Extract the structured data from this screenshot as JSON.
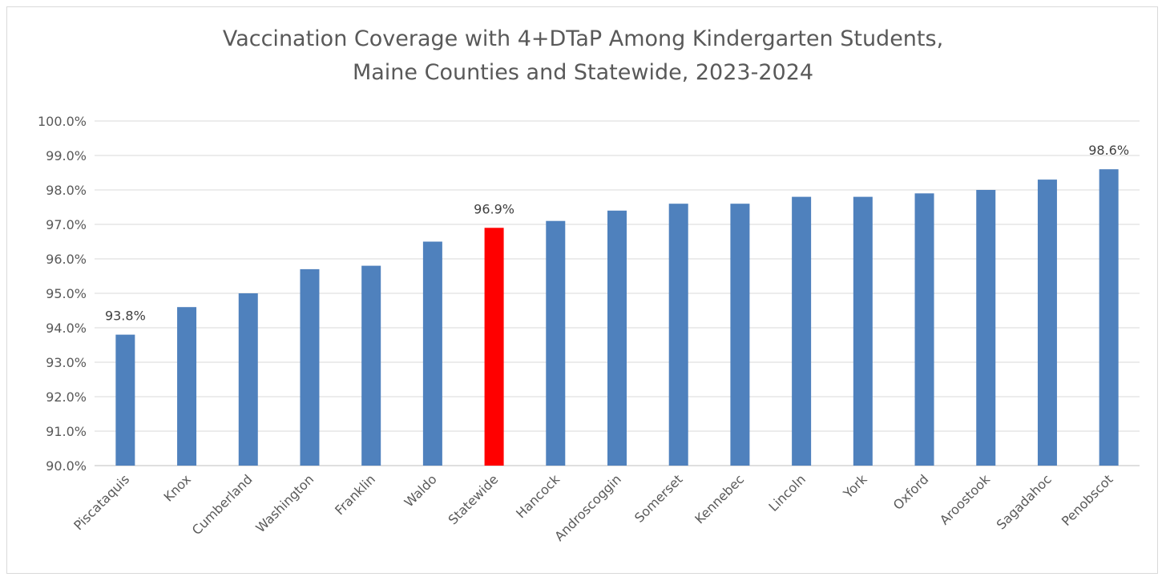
{
  "chart_data": {
    "type": "bar",
    "title": "Vaccination Coverage with 4+DTaP Among Kindergarten Students,",
    "subtitle": "Maine Counties and Statewide, 2023-2024",
    "xlabel": "",
    "ylabel": "",
    "ylim": [
      90.0,
      100.0
    ],
    "ytick_labels": [
      "90.0%",
      "91.0%",
      "92.0%",
      "93.0%",
      "94.0%",
      "95.0%",
      "96.0%",
      "97.0%",
      "98.0%",
      "99.0%",
      "100.0%"
    ],
    "grid": true,
    "legend": "none",
    "categories": [
      "Piscataquis",
      "Knox",
      "Cumberland",
      "Washington",
      "Franklin",
      "Waldo",
      "Statewide",
      "Hancock",
      "Androscoggin",
      "Somerset",
      "Kennebec",
      "Lincoln",
      "York",
      "Oxford",
      "Aroostook",
      "Sagadahoc",
      "Penobscot"
    ],
    "values": [
      93.8,
      94.6,
      95.0,
      95.7,
      95.8,
      96.5,
      96.9,
      97.1,
      97.4,
      97.6,
      97.6,
      97.8,
      97.8,
      97.9,
      98.0,
      98.3,
      98.6
    ],
    "data_labels": [
      "93.8%",
      "",
      "",
      "",
      "",
      "",
      "96.9%",
      "",
      "",
      "",
      "",
      "",
      "",
      "",
      "",
      "",
      "98.6%"
    ],
    "colors": {
      "default": "#4f81bd",
      "highlight": "#ff0000",
      "highlight_category": "Statewide"
    }
  }
}
